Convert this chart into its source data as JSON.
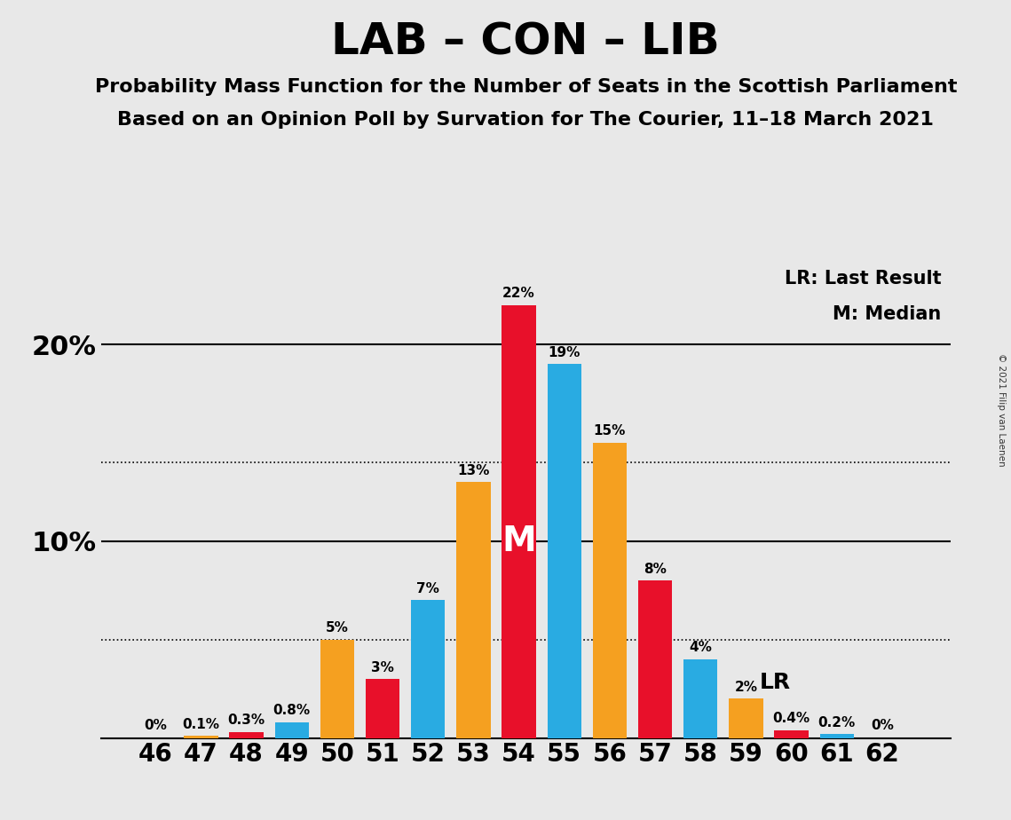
{
  "title": "LAB – CON – LIB",
  "subtitle1": "Probability Mass Function for the Number of Seats in the Scottish Parliament",
  "subtitle2": "Based on an Opinion Poll by Survation for The Courier, 11–18 March 2021",
  "copyright": "© 2021 Filip van Laenen",
  "seats": [
    46,
    47,
    48,
    49,
    50,
    51,
    52,
    53,
    54,
    55,
    56,
    57,
    58,
    59,
    60,
    61,
    62
  ],
  "values": [
    0.0,
    0.1,
    0.3,
    0.8,
    5.0,
    3.0,
    7.0,
    13.0,
    22.0,
    19.0,
    15.0,
    8.0,
    4.0,
    2.0,
    0.4,
    0.2,
    0.0
  ],
  "colors": [
    "#e8e8e8",
    "#f5a020",
    "#e8102a",
    "#29abe2",
    "#f5a020",
    "#e8102a",
    "#29abe2",
    "#f5a020",
    "#e8102a",
    "#29abe2",
    "#f5a020",
    "#e8102a",
    "#29abe2",
    "#f5a020",
    "#e8102a",
    "#29abe2",
    "#e8e8e8"
  ],
  "labels": [
    "0%",
    "0.1%",
    "0.3%",
    "0.8%",
    "5%",
    "3%",
    "7%",
    "13%",
    "22%",
    "19%",
    "15%",
    "8%",
    "4%",
    "2%",
    "0.4%",
    "0.2%",
    "0%"
  ],
  "median_seat": 54,
  "lr_seat": 58,
  "ylim": [
    0,
    25
  ],
  "dotted_lines": [
    5.0,
    14.0
  ],
  "background_color": "#e8e8e8",
  "bar_color_red": "#e8102a",
  "bar_color_orange": "#f5a020",
  "bar_color_blue": "#29abe2",
  "legend_lr": "LR: Last Result",
  "legend_m": "M: Median",
  "solid_lines": [
    10.0,
    20.0
  ],
  "label_fontsize": 11,
  "ytick_fontsize": 22,
  "xtick_fontsize": 20,
  "title_fontsize": 36,
  "subtitle_fontsize": 16,
  "lr_fontsize": 18,
  "legend_fontsize": 15,
  "m_fontsize": 28
}
